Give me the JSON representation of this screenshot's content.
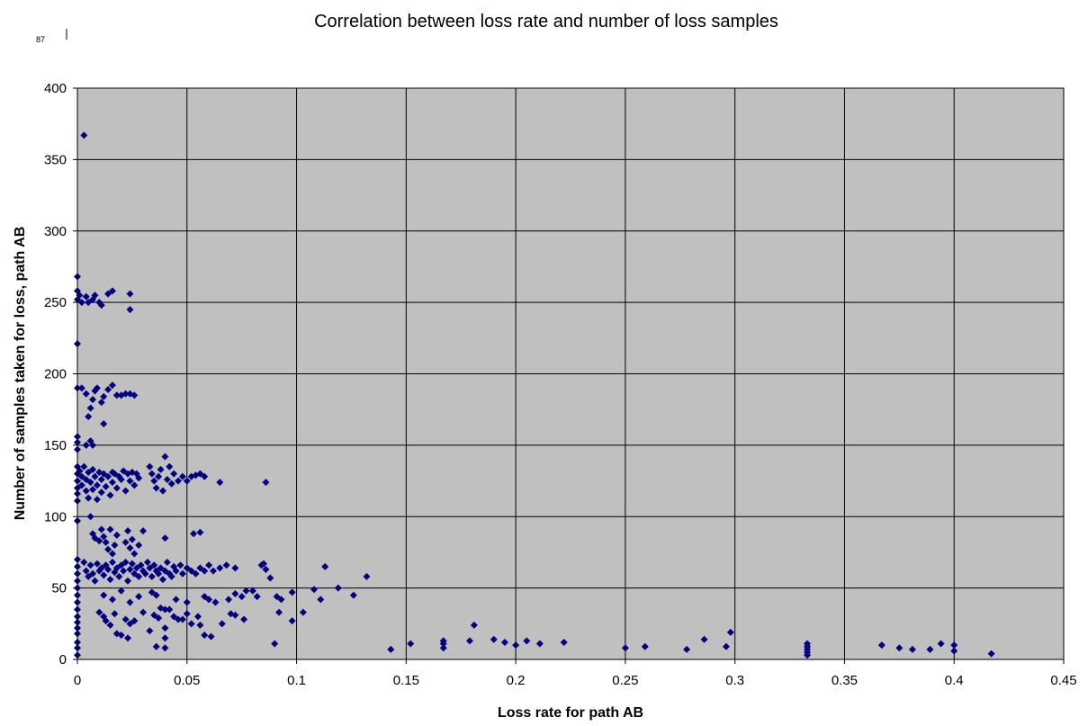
{
  "page_mark": "87",
  "chart_data": {
    "type": "scatter",
    "title": "Correlation between loss rate and number of loss samples",
    "xlabel": "Loss rate for path AB",
    "ylabel": "Number of samples taken for loss, path AB",
    "xlim": [
      0,
      0.45
    ],
    "ylim": [
      0,
      400
    ],
    "x_ticks": [
      "0",
      "0.05",
      "0.1",
      "0.15",
      "0.2",
      "0.25",
      "0.3",
      "0.35",
      "0.4",
      "0.45"
    ],
    "y_ticks": [
      "0",
      "50",
      "100",
      "150",
      "200",
      "250",
      "300",
      "350",
      "400"
    ],
    "grid": true,
    "legend": "none",
    "plot_background": "#c0c0c0",
    "marker_color": "#000080",
    "marker": "diamond",
    "points": [
      [
        0.003,
        367
      ],
      [
        0.0,
        268
      ],
      [
        0.0,
        258
      ],
      [
        0.0,
        252
      ],
      [
        0.001,
        255
      ],
      [
        0.002,
        250
      ],
      [
        0.004,
        254
      ],
      [
        0.005,
        250
      ],
      [
        0.007,
        252
      ],
      [
        0.008,
        255
      ],
      [
        0.01,
        250
      ],
      [
        0.011,
        248
      ],
      [
        0.014,
        256
      ],
      [
        0.016,
        258
      ],
      [
        0.024,
        256
      ],
      [
        0.024,
        245
      ],
      [
        0.0,
        221
      ],
      [
        0.0,
        190
      ],
      [
        0.002,
        190
      ],
      [
        0.004,
        186
      ],
      [
        0.005,
        170
      ],
      [
        0.006,
        176
      ],
      [
        0.007,
        182
      ],
      [
        0.008,
        188
      ],
      [
        0.009,
        190
      ],
      [
        0.011,
        180
      ],
      [
        0.012,
        184
      ],
      [
        0.014,
        189
      ],
      [
        0.016,
        192
      ],
      [
        0.018,
        185
      ],
      [
        0.02,
        185
      ],
      [
        0.022,
        186
      ],
      [
        0.024,
        186
      ],
      [
        0.026,
        185
      ],
      [
        0.012,
        165
      ],
      [
        0.0,
        156
      ],
      [
        0.0,
        152
      ],
      [
        0.0,
        147
      ],
      [
        0.004,
        150
      ],
      [
        0.006,
        153
      ],
      [
        0.007,
        150
      ],
      [
        0.0,
        135
      ],
      [
        0.0,
        130
      ],
      [
        0.0,
        125
      ],
      [
        0.0,
        120
      ],
      [
        0.0,
        116
      ],
      [
        0.0,
        111
      ],
      [
        0.001,
        132
      ],
      [
        0.002,
        128
      ],
      [
        0.002,
        122
      ],
      [
        0.003,
        135
      ],
      [
        0.004,
        126
      ],
      [
        0.004,
        118
      ],
      [
        0.005,
        131
      ],
      [
        0.005,
        113
      ],
      [
        0.006,
        124
      ],
      [
        0.007,
        133
      ],
      [
        0.007,
        119
      ],
      [
        0.008,
        128
      ],
      [
        0.009,
        122
      ],
      [
        0.009,
        112
      ],
      [
        0.01,
        131
      ],
      [
        0.011,
        126
      ],
      [
        0.011,
        117
      ],
      [
        0.012,
        130
      ],
      [
        0.013,
        121
      ],
      [
        0.014,
        128
      ],
      [
        0.015,
        115
      ],
      [
        0.016,
        131
      ],
      [
        0.016,
        124
      ],
      [
        0.017,
        130
      ],
      [
        0.018,
        120
      ],
      [
        0.019,
        128
      ],
      [
        0.02,
        126
      ],
      [
        0.021,
        132
      ],
      [
        0.022,
        118
      ],
      [
        0.023,
        130
      ],
      [
        0.024,
        125
      ],
      [
        0.025,
        131
      ],
      [
        0.026,
        122
      ],
      [
        0.027,
        130
      ],
      [
        0.028,
        127
      ],
      [
        0.033,
        135
      ],
      [
        0.034,
        130
      ],
      [
        0.035,
        125
      ],
      [
        0.036,
        120
      ],
      [
        0.037,
        128
      ],
      [
        0.038,
        133
      ],
      [
        0.039,
        118
      ],
      [
        0.04,
        142
      ],
      [
        0.041,
        126
      ],
      [
        0.042,
        135
      ],
      [
        0.043,
        123
      ],
      [
        0.044,
        130
      ],
      [
        0.046,
        125
      ],
      [
        0.048,
        128
      ],
      [
        0.05,
        125
      ],
      [
        0.052,
        128
      ],
      [
        0.054,
        129
      ],
      [
        0.056,
        130
      ],
      [
        0.058,
        128
      ],
      [
        0.065,
        124
      ],
      [
        0.086,
        124
      ],
      [
        0.0,
        97
      ],
      [
        0.006,
        100
      ],
      [
        0.007,
        88
      ],
      [
        0.008,
        85
      ],
      [
        0.01,
        83
      ],
      [
        0.011,
        91
      ],
      [
        0.012,
        86
      ],
      [
        0.013,
        82
      ],
      [
        0.014,
        77
      ],
      [
        0.015,
        91
      ],
      [
        0.016,
        74
      ],
      [
        0.017,
        80
      ],
      [
        0.018,
        87
      ],
      [
        0.022,
        82
      ],
      [
        0.023,
        90
      ],
      [
        0.024,
        78
      ],
      [
        0.025,
        84
      ],
      [
        0.026,
        74
      ],
      [
        0.028,
        80
      ],
      [
        0.03,
        90
      ],
      [
        0.04,
        85
      ],
      [
        0.053,
        88
      ],
      [
        0.056,
        89
      ],
      [
        0.0,
        70
      ],
      [
        0.0,
        65
      ],
      [
        0.0,
        60
      ],
      [
        0.0,
        55
      ],
      [
        0.0,
        50
      ],
      [
        0.0,
        45
      ],
      [
        0.0,
        40
      ],
      [
        0.0,
        35
      ],
      [
        0.0,
        30
      ],
      [
        0.0,
        26
      ],
      [
        0.0,
        22
      ],
      [
        0.0,
        18
      ],
      [
        0.0,
        12
      ],
      [
        0.0,
        8
      ],
      [
        0.0,
        3
      ],
      [
        0.003,
        68
      ],
      [
        0.004,
        62
      ],
      [
        0.005,
        58
      ],
      [
        0.006,
        66
      ],
      [
        0.007,
        60
      ],
      [
        0.008,
        55
      ],
      [
        0.009,
        67
      ],
      [
        0.01,
        62
      ],
      [
        0.011,
        64
      ],
      [
        0.012,
        59
      ],
      [
        0.013,
        66
      ],
      [
        0.014,
        63
      ],
      [
        0.015,
        56
      ],
      [
        0.016,
        68
      ],
      [
        0.017,
        61
      ],
      [
        0.018,
        64
      ],
      [
        0.019,
        58
      ],
      [
        0.02,
        66
      ],
      [
        0.021,
        62
      ],
      [
        0.022,
        68
      ],
      [
        0.023,
        55
      ],
      [
        0.024,
        63
      ],
      [
        0.025,
        67
      ],
      [
        0.026,
        60
      ],
      [
        0.027,
        64
      ],
      [
        0.028,
        58
      ],
      [
        0.029,
        66
      ],
      [
        0.03,
        62
      ],
      [
        0.031,
        60
      ],
      [
        0.032,
        68
      ],
      [
        0.033,
        64
      ],
      [
        0.034,
        58
      ],
      [
        0.035,
        66
      ],
      [
        0.036,
        62
      ],
      [
        0.037,
        60
      ],
      [
        0.038,
        64
      ],
      [
        0.039,
        56
      ],
      [
        0.04,
        62
      ],
      [
        0.041,
        68
      ],
      [
        0.042,
        60
      ],
      [
        0.043,
        58
      ],
      [
        0.044,
        65
      ],
      [
        0.045,
        62
      ],
      [
        0.047,
        66
      ],
      [
        0.048,
        60
      ],
      [
        0.05,
        64
      ],
      [
        0.052,
        62
      ],
      [
        0.054,
        60
      ],
      [
        0.056,
        64
      ],
      [
        0.058,
        62
      ],
      [
        0.06,
        66
      ],
      [
        0.062,
        62
      ],
      [
        0.065,
        64
      ],
      [
        0.068,
        66
      ],
      [
        0.072,
        64
      ],
      [
        0.012,
        45
      ],
      [
        0.016,
        42
      ],
      [
        0.02,
        48
      ],
      [
        0.024,
        40
      ],
      [
        0.028,
        44
      ],
      [
        0.034,
        47
      ],
      [
        0.036,
        45
      ],
      [
        0.04,
        35
      ],
      [
        0.045,
        42
      ],
      [
        0.05,
        40
      ],
      [
        0.055,
        30
      ],
      [
        0.058,
        44
      ],
      [
        0.06,
        42
      ],
      [
        0.063,
        40
      ],
      [
        0.069,
        42
      ],
      [
        0.072,
        46
      ],
      [
        0.075,
        44
      ],
      [
        0.077,
        48
      ],
      [
        0.08,
        48
      ],
      [
        0.082,
        44
      ],
      [
        0.084,
        66
      ],
      [
        0.085,
        67
      ],
      [
        0.086,
        63
      ],
      [
        0.088,
        57
      ],
      [
        0.091,
        44
      ],
      [
        0.093,
        42
      ],
      [
        0.098,
        47
      ],
      [
        0.108,
        49
      ],
      [
        0.111,
        42
      ],
      [
        0.113,
        65
      ],
      [
        0.119,
        50
      ],
      [
        0.126,
        45
      ],
      [
        0.132,
        58
      ],
      [
        0.01,
        33
      ],
      [
        0.012,
        30
      ],
      [
        0.013,
        27
      ],
      [
        0.015,
        24
      ],
      [
        0.017,
        32
      ],
      [
        0.018,
        18
      ],
      [
        0.02,
        17
      ],
      [
        0.022,
        28
      ],
      [
        0.023,
        15
      ],
      [
        0.024,
        25
      ],
      [
        0.026,
        27
      ],
      [
        0.03,
        33
      ],
      [
        0.033,
        20
      ],
      [
        0.035,
        31
      ],
      [
        0.037,
        29
      ],
      [
        0.038,
        36
      ],
      [
        0.04,
        22
      ],
      [
        0.042,
        35
      ],
      [
        0.044,
        30
      ],
      [
        0.046,
        28
      ],
      [
        0.048,
        28
      ],
      [
        0.05,
        32
      ],
      [
        0.052,
        25
      ],
      [
        0.056,
        24
      ],
      [
        0.058,
        17
      ],
      [
        0.061,
        16
      ],
      [
        0.066,
        25
      ],
      [
        0.07,
        32
      ],
      [
        0.072,
        31
      ],
      [
        0.076,
        28
      ],
      [
        0.092,
        33
      ],
      [
        0.098,
        27
      ],
      [
        0.103,
        33
      ],
      [
        0.036,
        9
      ],
      [
        0.04,
        8
      ],
      [
        0.04,
        15
      ],
      [
        0.09,
        11
      ],
      [
        0.143,
        7
      ],
      [
        0.152,
        11
      ],
      [
        0.167,
        11
      ],
      [
        0.167,
        8
      ],
      [
        0.167,
        13
      ],
      [
        0.179,
        13
      ],
      [
        0.181,
        24
      ],
      [
        0.19,
        14
      ],
      [
        0.195,
        12
      ],
      [
        0.2,
        10
      ],
      [
        0.205,
        13
      ],
      [
        0.211,
        11
      ],
      [
        0.222,
        12
      ],
      [
        0.25,
        8
      ],
      [
        0.259,
        9
      ],
      [
        0.278,
        7
      ],
      [
        0.286,
        14
      ],
      [
        0.296,
        9
      ],
      [
        0.298,
        19
      ],
      [
        0.333,
        9
      ],
      [
        0.333,
        7
      ],
      [
        0.333,
        5
      ],
      [
        0.333,
        3
      ],
      [
        0.333,
        11
      ],
      [
        0.367,
        10
      ],
      [
        0.375,
        8
      ],
      [
        0.381,
        7
      ],
      [
        0.389,
        7
      ],
      [
        0.394,
        11
      ],
      [
        0.4,
        6
      ],
      [
        0.4,
        10
      ],
      [
        0.417,
        4
      ]
    ]
  }
}
